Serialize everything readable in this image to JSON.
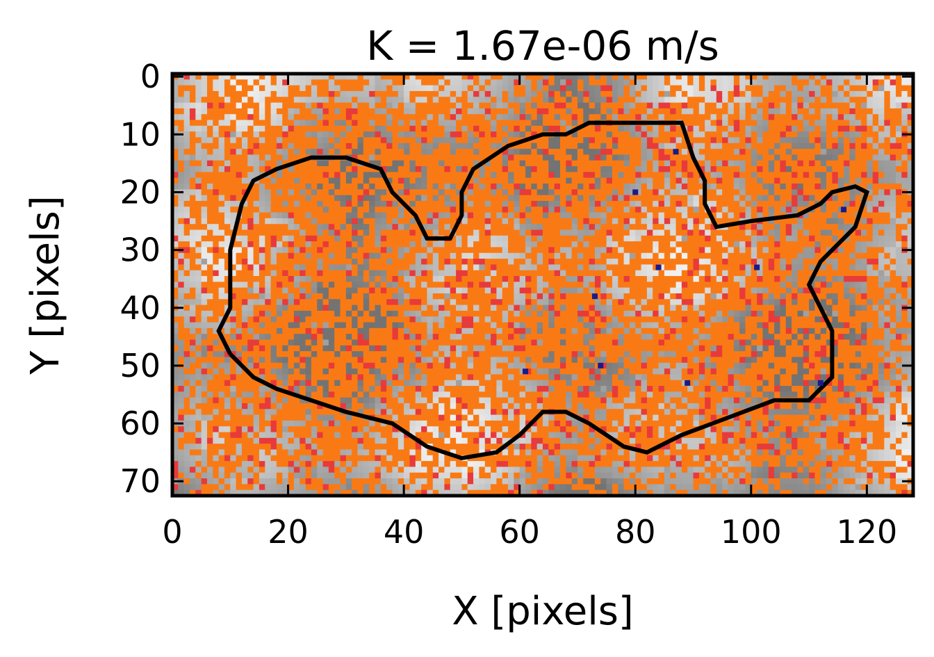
{
  "chart_data": {
    "type": "heatmap",
    "title": "K = 1.67e-06 m/s",
    "xlabel": "X [pixels]",
    "ylabel": "Y [pixels]",
    "xlim": [
      0,
      128
    ],
    "ylim": [
      72.5,
      -0.5
    ],
    "y_axis_inverted": true,
    "x_ticks": [
      0,
      20,
      40,
      60,
      80,
      100,
      120
    ],
    "x_tick_labels": [
      "0",
      "20",
      "40",
      "60",
      "80",
      "100",
      "120"
    ],
    "y_ticks": [
      0,
      10,
      20,
      30,
      40,
      50,
      60,
      70
    ],
    "y_tick_labels": [
      "0",
      "10",
      "20",
      "30",
      "40",
      "50",
      "60",
      "70"
    ],
    "grid": false,
    "legend": "none",
    "colors": {
      "background_map": "grayscale",
      "dominant_overlay": "#f97a14",
      "secondary_overlay": "#e83a3a",
      "contour": "#000000",
      "points": "#1a1a8c"
    },
    "overlay_layers": [
      {
        "role": "dominant orange network",
        "color": "#f97a14"
      },
      {
        "role": "sparse red pixels",
        "color": "#e83a3a"
      },
      {
        "role": "black contour loop",
        "color": "#000000"
      },
      {
        "role": "isolated dark blue pixels",
        "color": "#1a1a8c"
      }
    ],
    "contour_path": [
      [
        10,
        48
      ],
      [
        8,
        44
      ],
      [
        10,
        40
      ],
      [
        10,
        30
      ],
      [
        12,
        22
      ],
      [
        14,
        18
      ],
      [
        18,
        16
      ],
      [
        24,
        14
      ],
      [
        30,
        14
      ],
      [
        36,
        16
      ],
      [
        38,
        20
      ],
      [
        42,
        24
      ],
      [
        44,
        28
      ],
      [
        48,
        28
      ],
      [
        50,
        24
      ],
      [
        50,
        20
      ],
      [
        52,
        16
      ],
      [
        58,
        12
      ],
      [
        64,
        10
      ],
      [
        68,
        10
      ],
      [
        72,
        8
      ],
      [
        80,
        8
      ],
      [
        84,
        8
      ],
      [
        88,
        8
      ],
      [
        90,
        14
      ],
      [
        92,
        18
      ],
      [
        92,
        22
      ],
      [
        94,
        26
      ],
      [
        100,
        25
      ],
      [
        108,
        24
      ],
      [
        112,
        22
      ],
      [
        114,
        20
      ],
      [
        118,
        19
      ],
      [
        120,
        20
      ],
      [
        118,
        26
      ],
      [
        112,
        32
      ],
      [
        110,
        36
      ],
      [
        112,
        40
      ],
      [
        114,
        44
      ],
      [
        114,
        52
      ],
      [
        110,
        56
      ],
      [
        104,
        56
      ],
      [
        96,
        59
      ],
      [
        88,
        62
      ],
      [
        82,
        65
      ],
      [
        78,
        64
      ],
      [
        72,
        60
      ],
      [
        68,
        58
      ],
      [
        64,
        58
      ],
      [
        60,
        62
      ],
      [
        56,
        65
      ],
      [
        50,
        66
      ],
      [
        44,
        64
      ],
      [
        38,
        60
      ],
      [
        30,
        58
      ],
      [
        24,
        56
      ],
      [
        18,
        54
      ],
      [
        14,
        52
      ],
      [
        12,
        50
      ],
      [
        10,
        48
      ]
    ],
    "blue_points": [
      [
        87,
        13
      ],
      [
        80,
        20
      ],
      [
        116,
        23
      ],
      [
        84,
        33
      ],
      [
        101,
        33
      ],
      [
        73,
        38
      ],
      [
        74,
        50
      ],
      [
        61,
        51
      ],
      [
        89,
        53
      ],
      [
        112,
        53
      ]
    ]
  }
}
